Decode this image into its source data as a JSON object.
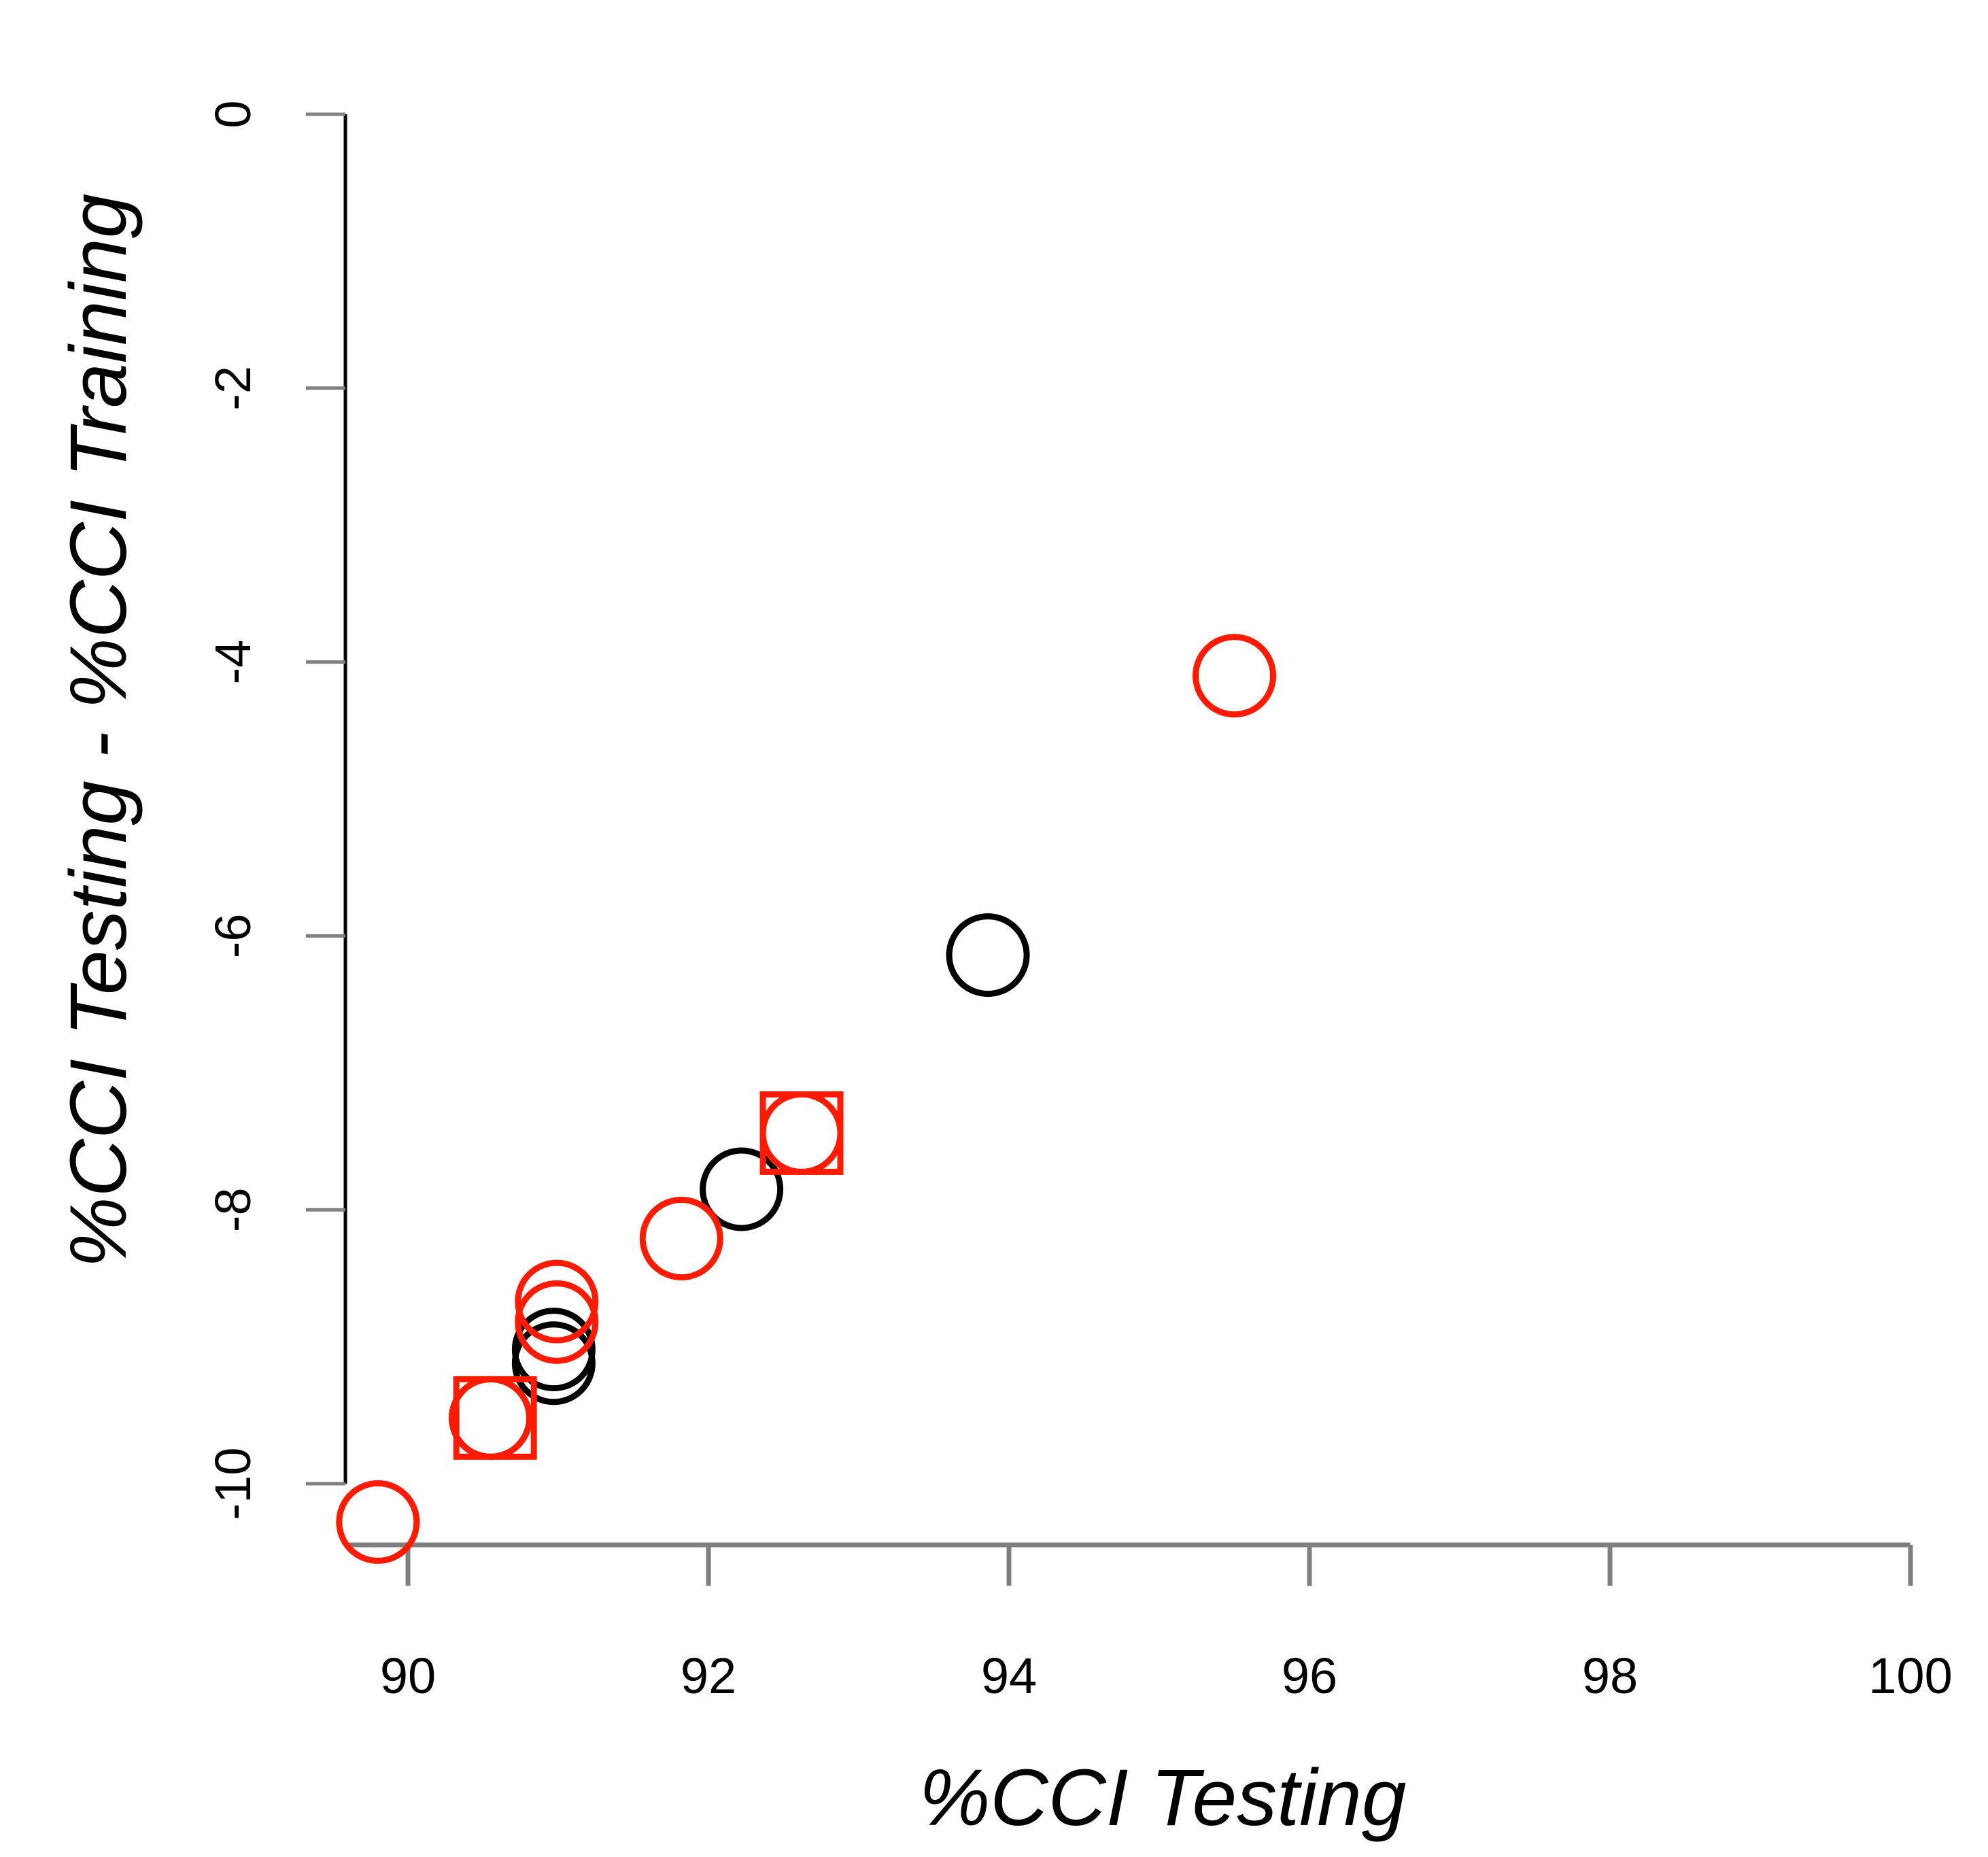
{
  "chart_data": {
    "type": "scatter",
    "title": "",
    "xlabel": "%CCI Testing",
    "ylabel": "%CCI Testing - %CCI Training",
    "xlim": [
      89.6,
      100
    ],
    "ylim": [
      -10.5,
      0
    ],
    "x_ticks": [
      90,
      92,
      94,
      96,
      98,
      100
    ],
    "y_ticks": [
      0,
      -2,
      -4,
      -6,
      -8,
      -10
    ],
    "x_tick_labels": [
      "90",
      "92",
      "94",
      "96",
      "98",
      "100"
    ],
    "y_tick_labels": [
      "0",
      "-2",
      "-4",
      "-6",
      "-8",
      "-10"
    ],
    "grid": false,
    "colors": {
      "axis": "#000000",
      "tick": "#808080",
      "black_series": "#000000",
      "red_series": "#ff1a00"
    },
    "series": [
      {
        "name": "black-circles",
        "color": "#000000",
        "marker": "circle",
        "x": [
          90.55,
          90.97,
          90.97,
          92.22,
          93.86
        ],
        "y": [
          -9.52,
          -9.12,
          -9.02,
          -7.85,
          -6.14
        ]
      },
      {
        "name": "red-circles",
        "color": "#ff1a00",
        "marker": "circle",
        "x": [
          89.8,
          90.55,
          90.99,
          90.99,
          91.82,
          92.62,
          95.5
        ],
        "y": [
          -10.28,
          -9.52,
          -8.82,
          -8.67,
          -8.21,
          -7.44,
          -4.1
        ]
      },
      {
        "name": "red-squares",
        "color": "#ff1a00",
        "marker": "square",
        "x": [
          90.58,
          92.62
        ],
        "y": [
          -9.52,
          -7.44
        ]
      }
    ]
  }
}
